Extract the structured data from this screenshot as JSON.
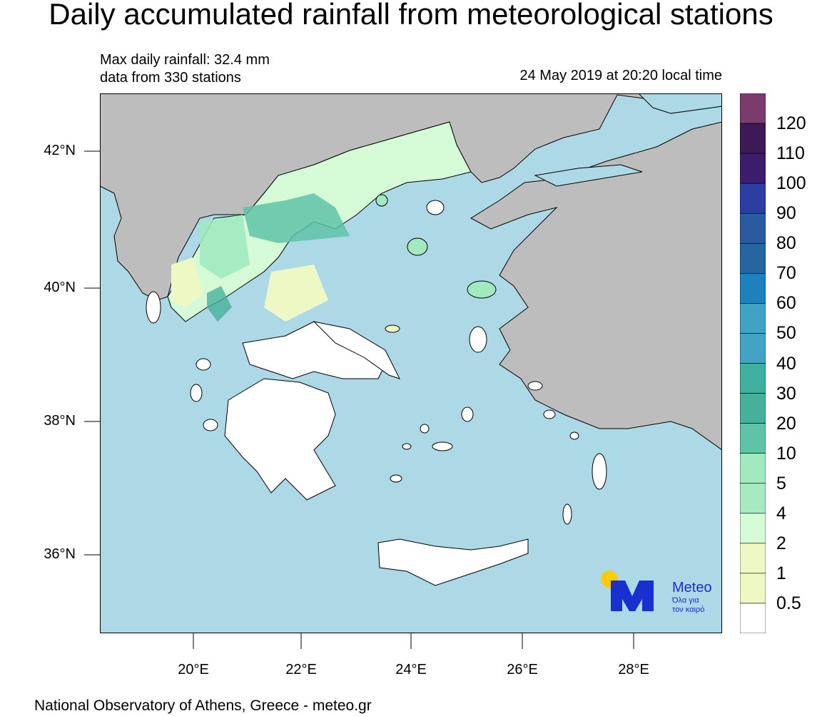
{
  "title": "Daily accumulated rainfall from meteorological stations",
  "max_rainfall": "Max daily rainfall: 32.4 mm",
  "stations": "data from 330 stations",
  "datetime": "24 May 2019 at 20:20 local time",
  "footer": "National Observatory of Athens, Greece - meteo.gr",
  "logo": {
    "brand": "Meteo",
    "tagline_1": "Όλα για",
    "tagline_2": "τον καιρό",
    "color": "#1a2fd0",
    "sun_color": "#ffcc00"
  },
  "axes": {
    "lat_ticks": [
      "42°N",
      "40°N",
      "38°N",
      "36°N"
    ],
    "lon_ticks": [
      "20°E",
      "22°E",
      "24°E",
      "26°E",
      "28°E"
    ]
  },
  "colors": {
    "sea": "#add8e6",
    "land_outside": "#bdbdbd",
    "dry": "#ffffff"
  },
  "colorbar": {
    "labels": [
      "120",
      "110",
      "100",
      "90",
      "80",
      "70",
      "60",
      "50",
      "40",
      "30",
      "20",
      "10",
      "5",
      "4",
      "2",
      "1",
      "0.5"
    ],
    "colors": [
      "#7b3b6c",
      "#3d1a55",
      "#3b1d6b",
      "#2c3ea3",
      "#2a5aa0",
      "#26659f",
      "#1e80bd",
      "#41a3c4",
      "#43a3c4",
      "#3fb09f",
      "#47b09b",
      "#5fc3a8",
      "#a1eac0",
      "#a6eac2",
      "#d5fad6",
      "#eef8c5",
      "#eef8c3",
      "#ffffff"
    ]
  }
}
